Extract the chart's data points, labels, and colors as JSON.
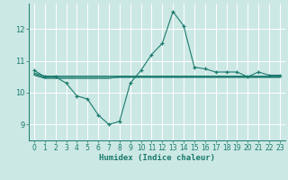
{
  "xlabel": "Humidex (Indice chaleur)",
  "ylabel": "",
  "bg_color": "#cce8e4",
  "grid_color": "#ffffff",
  "line_color": "#1a7a6e",
  "x_ticks": [
    0,
    1,
    2,
    3,
    4,
    5,
    6,
    7,
    8,
    9,
    10,
    11,
    12,
    13,
    14,
    15,
    16,
    17,
    18,
    19,
    20,
    21,
    22,
    23
  ],
  "y_ticks": [
    9,
    10,
    11,
    12
  ],
  "ylim": [
    8.5,
    12.8
  ],
  "xlim": [
    -0.5,
    23.5
  ],
  "series": [
    [
      10.7,
      10.5,
      10.5,
      10.3,
      9.9,
      9.8,
      9.3,
      9.0,
      9.1,
      10.3,
      10.7,
      11.2,
      11.55,
      12.55,
      12.1,
      10.8,
      10.75,
      10.65,
      10.65,
      10.65,
      10.5,
      10.65,
      10.55,
      10.55
    ],
    [
      10.62,
      10.52,
      10.52,
      10.52,
      10.52,
      10.52,
      10.52,
      10.52,
      10.52,
      10.52,
      10.52,
      10.52,
      10.52,
      10.52,
      10.52,
      10.52,
      10.52,
      10.52,
      10.52,
      10.52,
      10.52,
      10.52,
      10.52,
      10.52
    ],
    [
      10.58,
      10.48,
      10.48,
      10.48,
      10.48,
      10.48,
      10.48,
      10.48,
      10.48,
      10.48,
      10.48,
      10.48,
      10.48,
      10.48,
      10.48,
      10.48,
      10.48,
      10.48,
      10.48,
      10.48,
      10.48,
      10.48,
      10.48,
      10.48
    ],
    [
      10.55,
      10.45,
      10.45,
      10.45,
      10.45,
      10.45,
      10.45,
      10.45,
      10.5,
      10.5,
      10.5,
      10.5,
      10.5,
      10.5,
      10.5,
      10.5,
      10.5,
      10.5,
      10.5,
      10.5,
      10.5,
      10.5,
      10.5,
      10.5
    ]
  ],
  "marker_series_idx": 0,
  "marker": "+",
  "marker_size": 3,
  "line_width": 0.8,
  "tick_fontsize": 5.5,
  "xlabel_fontsize": 6.5
}
